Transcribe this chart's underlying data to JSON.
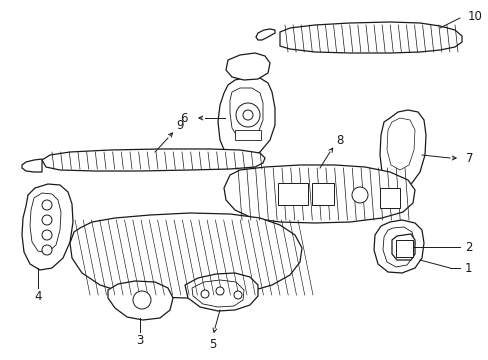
{
  "background_color": "#ffffff",
  "line_color": "#1a1a1a",
  "line_width": 0.9,
  "label_fontsize": 8.5,
  "figsize": [
    4.89,
    3.6
  ],
  "dpi": 100,
  "xlim": [
    0,
    489
  ],
  "ylim": [
    0,
    360
  ]
}
